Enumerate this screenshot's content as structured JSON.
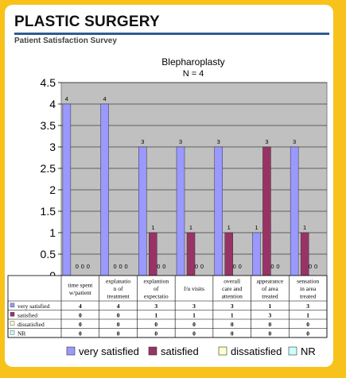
{
  "header": {
    "title": "PLASTIC SURGERY",
    "subtitle": "Patient Satisfaction Survey"
  },
  "colors": {
    "frame_background": "#f7c21a",
    "header_rule": "#2f5b95",
    "plot_background": "#c0c0c0"
  },
  "chart_data": {
    "type": "bar",
    "title": "Blepharoplasty",
    "subtitle": "N = 4",
    "xlabel": "",
    "ylabel": "",
    "ylim": [
      0,
      4.5
    ],
    "yticks": [
      "0",
      "0.5",
      "1",
      "1.5",
      "2",
      "2.5",
      "3",
      "3.5",
      "4",
      "4.5"
    ],
    "grid": true,
    "legend_position": "bottom",
    "categories": [
      [
        "time spent",
        "w/patient"
      ],
      [
        "explanatio",
        "n of",
        "treatment"
      ],
      [
        "explantion",
        "of",
        "expectatio"
      ],
      [
        "f/u visits"
      ],
      [
        "overall",
        "care and",
        "attention"
      ],
      [
        "appearance",
        "of area",
        "treated"
      ],
      [
        "sensation",
        "in area",
        "treated"
      ]
    ],
    "series": [
      {
        "name": "very satisfied",
        "color": "#9999ff",
        "values": [
          4,
          4,
          3,
          3,
          3,
          1,
          3
        ]
      },
      {
        "name": "satisfied",
        "color": "#993366",
        "values": [
          0,
          0,
          1,
          1,
          1,
          3,
          1
        ]
      },
      {
        "name": "dissatisfied",
        "color": "#ffffcc",
        "values": [
          0,
          0,
          0,
          0,
          0,
          0,
          0
        ]
      },
      {
        "name": "NR",
        "color": "#ccffff",
        "values": [
          0,
          0,
          0,
          0,
          0,
          0,
          0
        ]
      }
    ],
    "data_labels": [
      [
        "4",
        "0",
        "0",
        "0"
      ],
      [
        "4",
        "0",
        "0",
        "0"
      ],
      [
        "3",
        "1",
        "0",
        "0"
      ],
      [
        "3",
        "1",
        "0",
        "0"
      ],
      [
        "3",
        "1",
        "0",
        "0"
      ],
      [
        "1",
        "3",
        "0",
        "0"
      ],
      [
        "3",
        "1",
        "0",
        "0"
      ]
    ],
    "table_rows": [
      {
        "label": "very satisfied",
        "values": [
          "4",
          "4",
          "3",
          "3",
          "3",
          "1",
          "3"
        ]
      },
      {
        "label": "satisfied",
        "values": [
          "0",
          "0",
          "1",
          "1",
          "1",
          "3",
          "1"
        ]
      },
      {
        "label": "dissatisfied",
        "values": [
          "0",
          "0",
          "0",
          "0",
          "0",
          "0",
          "0"
        ]
      },
      {
        "label": "NR",
        "values": [
          "0",
          "0",
          "0",
          "0",
          "0",
          "0",
          "0"
        ]
      }
    ]
  }
}
